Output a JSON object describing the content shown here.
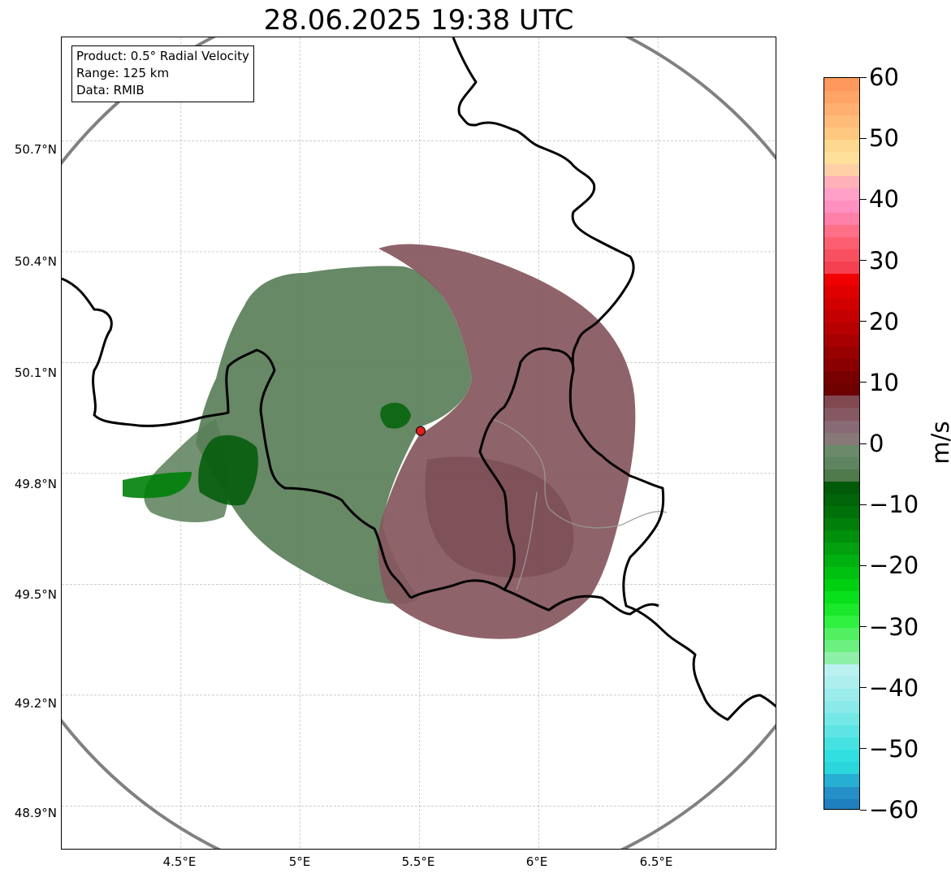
{
  "title": "28.06.2025 19:38 UTC",
  "info": {
    "product": "Product: 0.5° Radial Velocity",
    "range": "Range: 125 km",
    "data": "Data: RMIB"
  },
  "map": {
    "lon_range": [
      4.0,
      7.0
    ],
    "lat_range": [
      48.78,
      50.98
    ],
    "radar_site": {
      "lon": 5.505,
      "lat": 49.915
    },
    "range_ring_km": 125,
    "lat_ticks": [
      {
        "value": 50.7,
        "label": "50.7°N"
      },
      {
        "value": 50.4,
        "label": "50.4°N"
      },
      {
        "value": 50.1,
        "label": "50.1°N"
      },
      {
        "value": 49.8,
        "label": "49.8°N"
      },
      {
        "value": 49.5,
        "label": "49.5°N"
      },
      {
        "value": 49.2,
        "label": "49.2°N"
      },
      {
        "value": 48.9,
        "label": "48.9°N"
      }
    ],
    "lon_ticks": [
      {
        "value": 4.5,
        "label": "4.5°E"
      },
      {
        "value": 5.0,
        "label": "5°E"
      },
      {
        "value": 5.5,
        "label": "5.5°E"
      },
      {
        "value": 6.0,
        "label": "6°E"
      },
      {
        "value": 6.5,
        "label": "6.5°E"
      }
    ],
    "colors": {
      "ring": "#808080",
      "border": "#000000",
      "grid": "#b0b0b0",
      "inbound": "#5a7f58",
      "outbound": "#87575f",
      "radar_marker": "#e0201f"
    }
  },
  "colorbar": {
    "unit": "m/s",
    "min": -60,
    "max": 60,
    "ticks": [
      {
        "value": 60,
        "label": "60"
      },
      {
        "value": 50,
        "label": "50"
      },
      {
        "value": 40,
        "label": "40"
      },
      {
        "value": 30,
        "label": "30"
      },
      {
        "value": 20,
        "label": "20"
      },
      {
        "value": 10,
        "label": "10"
      },
      {
        "value": 0,
        "label": "0"
      },
      {
        "value": -10,
        "label": "−10"
      },
      {
        "value": -20,
        "label": "−20"
      },
      {
        "value": -30,
        "label": "−30"
      },
      {
        "value": -40,
        "label": "−40"
      },
      {
        "value": -50,
        "label": "−50"
      },
      {
        "value": -60,
        "label": "−60"
      }
    ],
    "stops": [
      {
        "from": -60,
        "to": -58,
        "color": "#1f7fbf"
      },
      {
        "from": -58,
        "to": -56,
        "color": "#2590c8"
      },
      {
        "from": -56,
        "to": -54,
        "color": "#26afd2"
      },
      {
        "from": -54,
        "to": -52,
        "color": "#2ad6dc"
      },
      {
        "from": -52,
        "to": -50,
        "color": "#30e0e0"
      },
      {
        "from": -50,
        "to": -48,
        "color": "#46e2e2"
      },
      {
        "from": -48,
        "to": -46,
        "color": "#5de5e5"
      },
      {
        "from": -46,
        "to": -44,
        "color": "#74e7e7"
      },
      {
        "from": -44,
        "to": -42,
        "color": "#8aeaea"
      },
      {
        "from": -42,
        "to": -40,
        "color": "#9decec"
      },
      {
        "from": -40,
        "to": -38,
        "color": "#adeeee"
      },
      {
        "from": -38,
        "to": -36,
        "color": "#baf0f0"
      },
      {
        "from": -36,
        "to": -34,
        "color": "#8ff0a8"
      },
      {
        "from": -34,
        "to": -32,
        "color": "#6cf080"
      },
      {
        "from": -32,
        "to": -30,
        "color": "#50f060"
      },
      {
        "from": -30,
        "to": -28,
        "color": "#30f040"
      },
      {
        "from": -28,
        "to": -26,
        "color": "#1ae82a"
      },
      {
        "from": -26,
        "to": -24,
        "color": "#08e01a"
      },
      {
        "from": -24,
        "to": -22,
        "color": "#00d010"
      },
      {
        "from": -22,
        "to": -20,
        "color": "#00c010"
      },
      {
        "from": -20,
        "to": -18,
        "color": "#00b010"
      },
      {
        "from": -18,
        "to": -16,
        "color": "#00a00e"
      },
      {
        "from": -16,
        "to": -14,
        "color": "#00900c"
      },
      {
        "from": -14,
        "to": -12,
        "color": "#00800a"
      },
      {
        "from": -12,
        "to": -10,
        "color": "#007008"
      },
      {
        "from": -10,
        "to": -8,
        "color": "#006408"
      },
      {
        "from": -8,
        "to": -6,
        "color": "#005a08"
      },
      {
        "from": -6,
        "to": -4,
        "color": "#4e7a4c"
      },
      {
        "from": -4,
        "to": -2,
        "color": "#5e8560"
      },
      {
        "from": -2,
        "to": 0,
        "color": "#6a8a6a"
      },
      {
        "from": 0,
        "to": 2,
        "color": "#887878"
      },
      {
        "from": 2,
        "to": 4,
        "color": "#886a76"
      },
      {
        "from": 4,
        "to": 6,
        "color": "#865862"
      },
      {
        "from": 6,
        "to": 8,
        "color": "#824850"
      },
      {
        "from": 8,
        "to": 10,
        "color": "#6e0000"
      },
      {
        "from": 10,
        "to": 12,
        "color": "#780000"
      },
      {
        "from": 12,
        "to": 14,
        "color": "#8a0000"
      },
      {
        "from": 14,
        "to": 16,
        "color": "#980000"
      },
      {
        "from": 16,
        "to": 18,
        "color": "#a80000"
      },
      {
        "from": 18,
        "to": 20,
        "color": "#b80000"
      },
      {
        "from": 20,
        "to": 22,
        "color": "#c40000"
      },
      {
        "from": 22,
        "to": 24,
        "color": "#d20000"
      },
      {
        "from": 24,
        "to": 26,
        "color": "#e00000"
      },
      {
        "from": 26,
        "to": 28,
        "color": "#f00000"
      },
      {
        "from": 28,
        "to": 30,
        "color": "#f44050"
      },
      {
        "from": 30,
        "to": 32,
        "color": "#f85060"
      },
      {
        "from": 32,
        "to": 34,
        "color": "#fc6070"
      },
      {
        "from": 34,
        "to": 36,
        "color": "#fe7088"
      },
      {
        "from": 36,
        "to": 38,
        "color": "#ff80a8"
      },
      {
        "from": 38,
        "to": 40,
        "color": "#ff90c0"
      },
      {
        "from": 40,
        "to": 42,
        "color": "#ffa0c8"
      },
      {
        "from": 42,
        "to": 44,
        "color": "#ffb0b8"
      },
      {
        "from": 44,
        "to": 46,
        "color": "#ffd0a8"
      },
      {
        "from": 46,
        "to": 48,
        "color": "#ffe09a"
      },
      {
        "from": 48,
        "to": 50,
        "color": "#ffd890"
      },
      {
        "from": 50,
        "to": 52,
        "color": "#ffc880"
      },
      {
        "from": 52,
        "to": 54,
        "color": "#ffbc78"
      },
      {
        "from": 54,
        "to": 56,
        "color": "#ffb070"
      },
      {
        "from": 56,
        "to": 58,
        "color": "#ffa466"
      },
      {
        "from": 58,
        "to": 60,
        "color": "#ff985c"
      }
    ]
  }
}
